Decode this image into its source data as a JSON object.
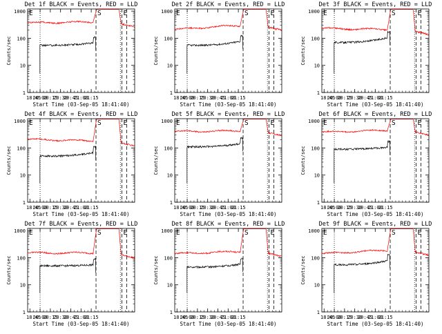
{
  "figure_title": "",
  "chart_data": [
    {
      "type": "line",
      "title": "Det 1f BLACK = Events, RED = LLD",
      "xlabel": "Start Time (03-Sep-05 18:41:40)",
      "ylabel": "Counts/sec",
      "yscale": "log",
      "ylim": [
        1,
        1200
      ],
      "xlim_minutes_after_18_41_40": [
        0,
        157
      ],
      "xtick_labels": [
        "18:45",
        "20:00",
        "20:15",
        "20:30",
        "20:45",
        "21:00",
        "21:15"
      ],
      "ytick_labels": [
        "1",
        "10",
        "100",
        "1000"
      ],
      "markers": {
        "E_start": "E",
        "S": "S",
        "E_end": "E"
      },
      "series": [
        {
          "name": "Events",
          "color": "#000000",
          "level_start": 55,
          "level_end": 70,
          "step_start_min": 18
        },
        {
          "name": "LLD",
          "color": "#ff0000",
          "level_start": 370,
          "level_end": 400,
          "peak": 1100
        }
      ]
    },
    {
      "type": "line",
      "title": "Det 2f BLACK = Events, RED = LLD",
      "xlabel": "Start Time (03-Sep-05 18:41:40)",
      "ylabel": "Counts/sec",
      "yscale": "log",
      "ylim": [
        1,
        1200
      ],
      "xlim_minutes_after_18_41_40": [
        0,
        157
      ],
      "xtick_labels": [
        "18:45",
        "20:00",
        "20:15",
        "20:30",
        "20:45",
        "21:00",
        "21:15"
      ],
      "ytick_labels": [
        "1",
        "10",
        "100",
        "1000"
      ],
      "markers": {
        "E_start": "E",
        "S": "S",
        "E_end": "E"
      },
      "series": [
        {
          "name": "Events",
          "color": "#000000",
          "level_start": 55,
          "level_end": 80,
          "step_start_min": 18
        },
        {
          "name": "LLD",
          "color": "#ff0000",
          "level_start": 210,
          "level_end": 300,
          "peak": 1100
        }
      ]
    },
    {
      "type": "line",
      "title": "Det 3f BLACK = Events, RED = LLD",
      "xlabel": "Start Time (03-Sep-05 18:41:40)",
      "ylabel": "Counts/sec",
      "yscale": "log",
      "ylim": [
        1,
        1200
      ],
      "xlim_minutes_after_18_41_40": [
        0,
        157
      ],
      "xtick_labels": [
        "18:45",
        "20:00",
        "20:15",
        "20:30",
        "20:45",
        "21:00",
        "21:15"
      ],
      "ytick_labels": [
        "1",
        "10",
        "100",
        "1000"
      ],
      "markers": {
        "E_start": "E",
        "S": "S",
        "E_end": "E"
      },
      "series": [
        {
          "name": "Events",
          "color": "#000000",
          "level_start": 70,
          "level_end": 110,
          "step_start_min": 18
        },
        {
          "name": "LLD",
          "color": "#ff0000",
          "level_start": 230,
          "level_end": 210,
          "peak": 1100
        }
      ]
    },
    {
      "type": "line",
      "title": "Det 4f BLACK = Events, RED = LLD",
      "xlabel": "Start Time (03-Sep-05 18:41:40)",
      "ylabel": "Counts/sec",
      "yscale": "log",
      "ylim": [
        1,
        1200
      ],
      "xlim_minutes_after_18_41_40": [
        0,
        157
      ],
      "xtick_labels": [
        "18:45",
        "20:00",
        "20:15",
        "20:30",
        "20:45",
        "21:00",
        "21:15"
      ],
      "ytick_labels": [
        "1",
        "10",
        "100",
        "1000"
      ],
      "markers": {
        "E_start": "E",
        "S": "S",
        "E_end": "E"
      },
      "series": [
        {
          "name": "Events",
          "color": "#000000",
          "level_start": 50,
          "level_end": 70,
          "step_start_min": 18
        },
        {
          "name": "LLD",
          "color": "#ff0000",
          "level_start": 210,
          "level_end": 180,
          "peak": 1100
        }
      ]
    },
    {
      "type": "line",
      "title": "Det 5f BLACK = Events, RED = LLD",
      "xlabel": "Start Time (03-Sep-05 18:41:40)",
      "ylabel": "Counts/sec",
      "yscale": "log",
      "ylim": [
        1,
        1200
      ],
      "xlim_minutes_after_18_41_40": [
        0,
        157
      ],
      "xtick_labels": [
        "18:45",
        "20:00",
        "20:15",
        "20:30",
        "20:45",
        "21:00",
        "21:15"
      ],
      "ytick_labels": [
        "1",
        "10",
        "100",
        "1000"
      ],
      "markers": {
        "E_start": "E",
        "S": "S",
        "E_end": "E"
      },
      "series": [
        {
          "name": "Events",
          "color": "#000000",
          "level_start": 110,
          "level_end": 150,
          "step_start_min": 18
        },
        {
          "name": "LLD",
          "color": "#ff0000",
          "level_start": 400,
          "level_end": 430,
          "peak": 1100
        }
      ]
    },
    {
      "type": "line",
      "title": "Det 6f BLACK = Events, RED = LLD",
      "xlabel": "Start Time (03-Sep-05 18:41:40)",
      "ylabel": "Counts/sec",
      "yscale": "log",
      "ylim": [
        1,
        1200
      ],
      "xlim_minutes_after_18_41_40": [
        0,
        157
      ],
      "xtick_labels": [
        "18:45",
        "20:00",
        "20:15",
        "20:30",
        "20:45",
        "21:00",
        "21:15"
      ],
      "ytick_labels": [
        "1",
        "10",
        "100",
        "1000"
      ],
      "markers": {
        "E_start": "E",
        "S": "S",
        "E_end": "E"
      },
      "series": [
        {
          "name": "Events",
          "color": "#000000",
          "level_start": 90,
          "level_end": 110,
          "step_start_min": 18
        },
        {
          "name": "LLD",
          "color": "#ff0000",
          "level_start": 380,
          "level_end": 450,
          "peak": 1100
        }
      ]
    },
    {
      "type": "line",
      "title": "Det 7f BLACK = Events, RED = LLD",
      "xlabel": "Start Time (03-Sep-05 18:41:40)",
      "ylabel": "Counts/sec",
      "yscale": "log",
      "ylim": [
        1,
        1200
      ],
      "xlim_minutes_after_18_41_40": [
        0,
        157
      ],
      "xtick_labels": [
        "18:45",
        "20:00",
        "20:15",
        "20:30",
        "20:45",
        "21:00",
        "21:15"
      ],
      "ytick_labels": [
        "1",
        "10",
        "100",
        "1000"
      ],
      "markers": {
        "E_start": "E",
        "S": "S",
        "E_end": "E"
      },
      "series": [
        {
          "name": "Events",
          "color": "#000000",
          "level_start": 50,
          "level_end": 55,
          "step_start_min": 18
        },
        {
          "name": "LLD",
          "color": "#ff0000",
          "level_start": 150,
          "level_end": 150,
          "peak": 1100
        }
      ]
    },
    {
      "type": "line",
      "title": "Det 8f BLACK = Events, RED = LLD",
      "xlabel": "Start Time (03-Sep-05 18:41:40)",
      "ylabel": "Counts/sec",
      "yscale": "log",
      "ylim": [
        1,
        1200
      ],
      "xlim_minutes_after_18_41_40": [
        0,
        157
      ],
      "xtick_labels": [
        "18:45",
        "20:00",
        "20:15",
        "20:30",
        "20:45",
        "21:00",
        "21:15"
      ],
      "ytick_labels": [
        "1",
        "10",
        "100",
        "1000"
      ],
      "markers": {
        "E_start": "E",
        "S": "S",
        "E_end": "E"
      },
      "series": [
        {
          "name": "Events",
          "color": "#000000",
          "level_start": 45,
          "level_end": 60,
          "step_start_min": 18
        },
        {
          "name": "LLD",
          "color": "#ff0000",
          "level_start": 140,
          "level_end": 170,
          "peak": 1100
        }
      ]
    },
    {
      "type": "line",
      "title": "Det 9f BLACK = Events, RED = LLD",
      "xlabel": "Start Time (03-Sep-05 18:41:40)",
      "ylabel": "Counts/sec",
      "yscale": "log",
      "ylim": [
        1,
        1200
      ],
      "xlim_minutes_after_18_41_40": [
        0,
        157
      ],
      "xtick_labels": [
        "18:45",
        "20:00",
        "20:15",
        "20:30",
        "20:45",
        "21:00",
        "21:15"
      ],
      "ytick_labels": [
        "1",
        "10",
        "100",
        "1000"
      ],
      "markers": {
        "E_start": "E",
        "S": "S",
        "E_end": "E"
      },
      "series": [
        {
          "name": "Events",
          "color": "#000000",
          "level_start": 55,
          "level_end": 80,
          "step_start_min": 18
        },
        {
          "name": "LLD",
          "color": "#ff0000",
          "level_start": 140,
          "level_end": 190,
          "peak": 1100
        }
      ]
    }
  ]
}
